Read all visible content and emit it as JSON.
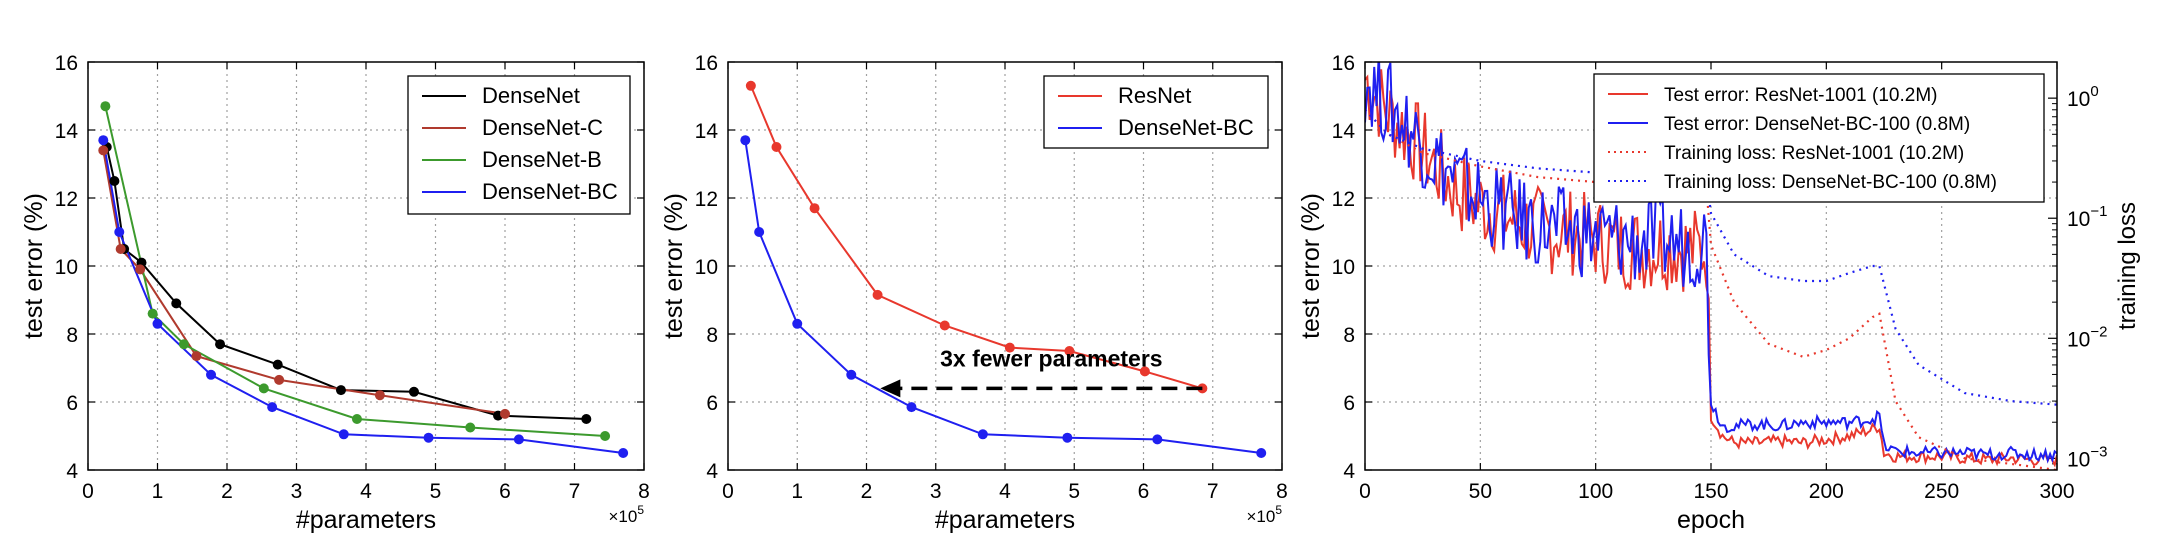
{
  "colors": {
    "black": "#000000",
    "brown": "#b03a2e",
    "green": "#3c9a2d",
    "blue": "#1f1ff0",
    "red": "#e8382d",
    "grid": "#a0a0a0"
  },
  "chart_data": [
    {
      "type": "line",
      "xlabel": "#parameters",
      "ylabel": "test error (%)",
      "x_multiplier_label": "×10",
      "x_multiplier_exp": "5",
      "xlim": [
        0,
        8
      ],
      "ylim": [
        4,
        16
      ],
      "xticks": [
        "0",
        "1",
        "2",
        "3",
        "4",
        "5",
        "6",
        "7",
        "8"
      ],
      "yticks": [
        "4",
        "6",
        "8",
        "10",
        "12",
        "14",
        "16"
      ],
      "grid": true,
      "legend_position": "top-right",
      "series": [
        {
          "name": "DenseNet",
          "color": "#000000",
          "x": [
            0.27,
            0.38,
            0.52,
            0.77,
            1.27,
            1.9,
            2.73,
            3.64,
            4.69,
            5.9,
            7.17
          ],
          "y": [
            13.5,
            12.5,
            10.5,
            10.1,
            8.9,
            7.7,
            7.1,
            6.35,
            6.3,
            5.6,
            5.5
          ]
        },
        {
          "name": "DenseNet-C",
          "color": "#b03a2e",
          "x": [
            0.22,
            0.47,
            0.75,
            1.56,
            2.75,
            4.2,
            6.0
          ],
          "y": [
            13.4,
            10.5,
            9.9,
            7.35,
            6.65,
            6.2,
            5.65
          ]
        },
        {
          "name": "DenseNet-B",
          "color": "#3c9a2d",
          "x": [
            0.25,
            0.93,
            1.38,
            2.53,
            3.87,
            5.5,
            7.44
          ],
          "y": [
            14.7,
            8.6,
            7.7,
            6.4,
            5.5,
            5.25,
            5.0
          ]
        },
        {
          "name": "DenseNet-BC",
          "color": "#1f1ff0",
          "x": [
            0.22,
            0.45,
            1.0,
            1.77,
            2.65,
            3.68,
            4.9,
            6.2,
            7.7
          ],
          "y": [
            13.7,
            11.0,
            8.3,
            6.8,
            5.85,
            5.05,
            4.95,
            4.9,
            4.5
          ]
        }
      ]
    },
    {
      "type": "line",
      "xlabel": "#parameters",
      "ylabel": "test error (%)",
      "x_multiplier_label": "×10",
      "x_multiplier_exp": "5",
      "xlim": [
        0,
        8
      ],
      "ylim": [
        4,
        16
      ],
      "xticks": [
        "0",
        "1",
        "2",
        "3",
        "4",
        "5",
        "6",
        "7",
        "8"
      ],
      "yticks": [
        "4",
        "6",
        "8",
        "10",
        "12",
        "14",
        "16"
      ],
      "grid": true,
      "legend_position": "top-right",
      "annotation": {
        "text": "3x fewer parameters",
        "arrow_from": [
          6.85,
          6.4
        ],
        "arrow_to": [
          2.2,
          6.4
        ]
      },
      "series": [
        {
          "name": "ResNet",
          "color": "#e8382d",
          "x": [
            0.33,
            0.7,
            1.25,
            2.16,
            3.13,
            4.07,
            4.93,
            6.02,
            6.85
          ],
          "y": [
            15.3,
            13.5,
            11.7,
            9.15,
            8.25,
            7.6,
            7.5,
            6.9,
            6.4
          ]
        },
        {
          "name": "DenseNet-BC",
          "color": "#1f1ff0",
          "x": [
            0.25,
            0.45,
            1.0,
            1.78,
            2.65,
            3.68,
            4.9,
            6.2,
            7.7
          ],
          "y": [
            13.7,
            11.0,
            8.3,
            6.8,
            5.85,
            5.05,
            4.95,
            4.9,
            4.5
          ]
        }
      ]
    },
    {
      "type": "line",
      "xlabel": "epoch",
      "ylabel": "test error (%)",
      "ylabel_right": "training loss",
      "xlim": [
        0,
        300
      ],
      "ylim": [
        4,
        16
      ],
      "ylim_right_log": [
        0.0008,
        2.0
      ],
      "xticks": [
        "0",
        "50",
        "100",
        "150",
        "200",
        "250",
        "300"
      ],
      "yticks": [
        "4",
        "6",
        "8",
        "10",
        "12",
        "14",
        "16"
      ],
      "yticks_right": [
        {
          "base": "10",
          "exp": "0"
        },
        {
          "base": "10",
          "exp": "−1"
        },
        {
          "base": "10",
          "exp": "−2"
        },
        {
          "base": "10",
          "exp": "−3"
        }
      ],
      "grid": true,
      "legend_position": "top-right",
      "series": [
        {
          "name": "Test error: ResNet-1001 (10.2M)",
          "color": "#e8382d",
          "style": "solid",
          "axis": "left",
          "x": [
            0,
            10,
            20,
            30,
            40,
            50,
            60,
            70,
            80,
            90,
            100,
            110,
            120,
            130,
            140,
            148,
            150,
            155,
            160,
            170,
            180,
            190,
            200,
            210,
            220,
            223,
            225,
            230,
            240,
            250,
            260,
            270,
            280,
            290,
            300
          ],
          "y": [
            15.5,
            14.5,
            13.8,
            13.0,
            12.2,
            11.8,
            11.5,
            11.2,
            11.0,
            11.0,
            10.8,
            10.6,
            10.5,
            10.6,
            10.5,
            10.5,
            5.6,
            5.0,
            4.8,
            4.8,
            4.85,
            4.8,
            4.9,
            5.0,
            5.2,
            5.3,
            4.5,
            4.4,
            4.4,
            4.4,
            4.35,
            4.3,
            4.35,
            4.3,
            4.3
          ]
        },
        {
          "name": "Test error: DenseNet-BC-100 (0.8M)",
          "color": "#1f1ff0",
          "style": "solid",
          "axis": "left",
          "x": [
            0,
            10,
            20,
            30,
            40,
            50,
            60,
            70,
            80,
            90,
            100,
            110,
            120,
            130,
            140,
            148,
            150,
            155,
            160,
            170,
            180,
            190,
            200,
            210,
            220,
            223,
            225,
            230,
            240,
            250,
            260,
            270,
            280,
            290,
            300
          ],
          "y": [
            15.5,
            14.8,
            14.0,
            13.2,
            12.5,
            12.0,
            11.6,
            11.3,
            11.1,
            11.0,
            10.9,
            10.8,
            10.7,
            10.8,
            10.6,
            10.8,
            6.0,
            5.3,
            5.3,
            5.35,
            5.3,
            5.4,
            5.4,
            5.4,
            5.5,
            5.6,
            4.7,
            4.55,
            4.5,
            4.5,
            4.5,
            4.45,
            4.5,
            4.45,
            4.45
          ]
        },
        {
          "name": "Training loss: ResNet-1001 (10.2M)",
          "color": "#e8382d",
          "style": "dotted",
          "axis": "right",
          "x": [
            0,
            10,
            25,
            50,
            75,
            100,
            125,
            148,
            150,
            160,
            175,
            190,
            200,
            210,
            220,
            223,
            230,
            240,
            260,
            280,
            300
          ],
          "y": [
            0.8,
            0.5,
            0.35,
            0.27,
            0.22,
            0.2,
            0.19,
            0.18,
            0.06,
            0.02,
            0.009,
            0.007,
            0.008,
            0.01,
            0.015,
            0.016,
            0.003,
            0.0015,
            0.001,
            0.0009,
            0.0008
          ]
        },
        {
          "name": "Training loss: DenseNet-BC-100 (0.8M)",
          "color": "#1f1ff0",
          "style": "dotted",
          "axis": "right",
          "x": [
            0,
            10,
            25,
            50,
            75,
            100,
            125,
            148,
            150,
            160,
            175,
            190,
            200,
            210,
            220,
            223,
            230,
            240,
            260,
            280,
            300
          ],
          "y": [
            0.8,
            0.5,
            0.38,
            0.3,
            0.26,
            0.24,
            0.23,
            0.22,
            0.11,
            0.05,
            0.033,
            0.03,
            0.03,
            0.035,
            0.04,
            0.04,
            0.012,
            0.006,
            0.0035,
            0.003,
            0.0028
          ]
        }
      ]
    }
  ]
}
